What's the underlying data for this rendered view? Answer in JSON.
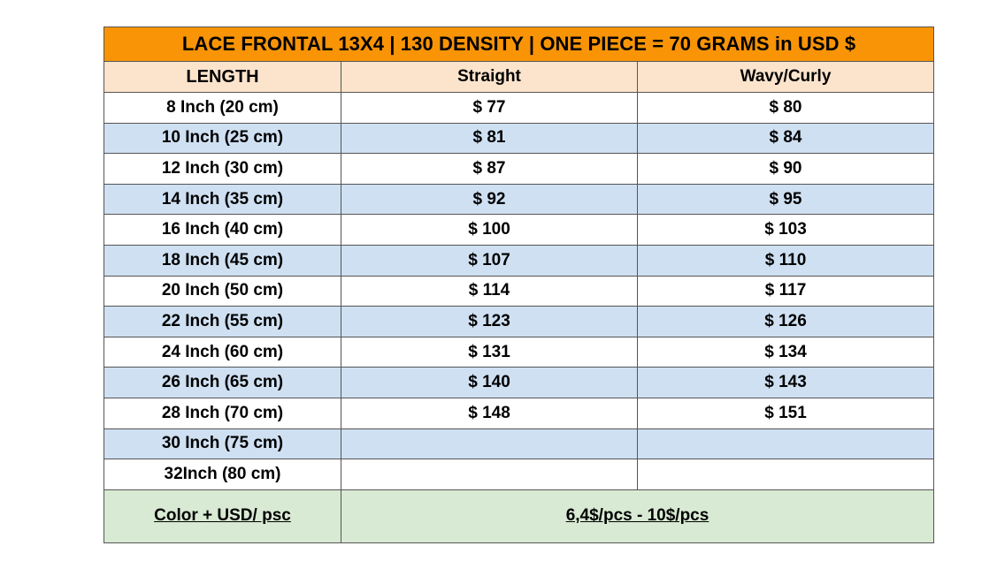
{
  "title": "LACE FRONTAL 13X4 | 130 DENSITY | ONE PIECE = 70 GRAMS in USD $",
  "headers": {
    "length": "LENGTH",
    "straight": "Straight",
    "wavy": "Wavy/Curly"
  },
  "rows": [
    {
      "length": "8 Inch (20 cm)",
      "straight": "$ 77",
      "wavy": "$ 80"
    },
    {
      "length": "10 Inch (25 cm)",
      "straight": "$ 81",
      "wavy": "$ 84"
    },
    {
      "length": "12 Inch (30 cm)",
      "straight": "$ 87",
      "wavy": "$ 90"
    },
    {
      "length": "14 Inch (35 cm)",
      "straight": "$ 92",
      "wavy": "$ 95"
    },
    {
      "length": "16 Inch (40 cm)",
      "straight": "$ 100",
      "wavy": "$ 103"
    },
    {
      "length": "18 Inch (45 cm)",
      "straight": "$ 107",
      "wavy": "$ 110"
    },
    {
      "length": "20 Inch (50 cm)",
      "straight": "$ 114",
      "wavy": "$ 117"
    },
    {
      "length": "22 Inch (55 cm)",
      "straight": "$ 123",
      "wavy": "$ 126"
    },
    {
      "length": "24 Inch (60 cm)",
      "straight": "$ 131",
      "wavy": "$ 134"
    },
    {
      "length": "26 Inch (65 cm)",
      "straight": "$ 140",
      "wavy": "$ 143"
    },
    {
      "length": "28 Inch (70 cm)",
      "straight": "$ 148",
      "wavy": "$ 151"
    },
    {
      "length": "30 Inch (75 cm)",
      "straight": "",
      "wavy": ""
    },
    {
      "length": "32Inch (80 cm)",
      "straight": "",
      "wavy": ""
    }
  ],
  "footer": {
    "label": "Color + USD/ psc",
    "value": "6,4$/pcs - 10$/pcs"
  },
  "colors": {
    "title_bg": "#f89406",
    "header_bg": "#fce4cc",
    "stripe_bg": "#cfe0f2",
    "footer_bg": "#d8ead3"
  }
}
